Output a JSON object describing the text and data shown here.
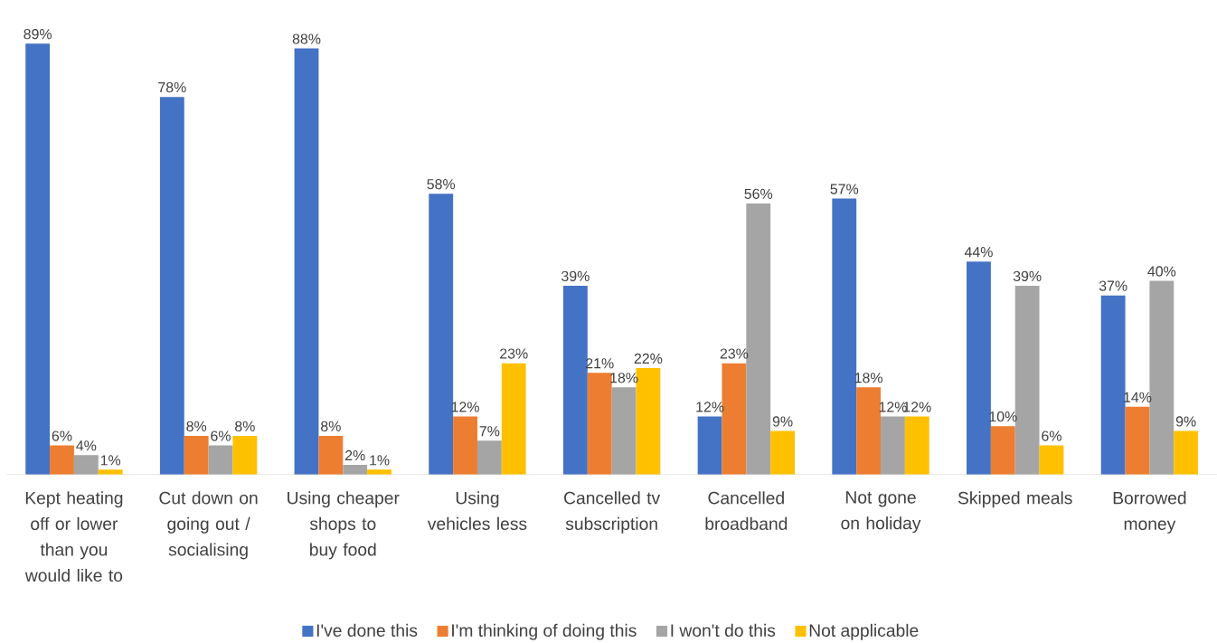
{
  "chart_data": {
    "type": "bar",
    "categories": [
      "Kept heating off or lower than you would like to",
      "Cut down on going out / socialising",
      "Using cheaper shops to buy food",
      "Using vehicles less",
      "Cancelled tv subscription",
      "Cancelled broadband",
      "Not gone on holiday",
      "Skipped meals",
      "Borrowed money"
    ],
    "series": [
      {
        "name": "I've done this",
        "color": "#4472c4",
        "values": [
          89,
          78,
          88,
          58,
          39,
          12,
          57,
          44,
          37
        ],
        "value_labels": [
          "89%",
          "78%",
          "88%",
          "58%",
          "39%",
          "12%",
          "57%",
          "44%",
          "37%"
        ]
      },
      {
        "name": "I'm thinking of doing this",
        "color": "#ed7d31",
        "values": [
          6,
          8,
          8,
          12,
          21,
          23,
          18,
          10,
          14
        ],
        "value_labels": [
          "6%",
          "8%",
          "8%",
          "12%",
          "21%",
          "23%",
          "18%",
          "10%",
          "14%"
        ]
      },
      {
        "name": "I won't do this",
        "color": "#a5a5a5",
        "values": [
          4,
          6,
          2,
          7,
          18,
          56,
          12,
          39,
          40
        ],
        "value_labels": [
          "4%",
          "6%",
          "2%",
          "7%",
          "18%",
          "56%",
          "12%",
          "39%",
          "40%"
        ]
      },
      {
        "name": "Not applicable",
        "color": "#ffc000",
        "values": [
          1,
          8,
          1,
          23,
          22,
          9,
          12,
          6,
          9
        ],
        "value_labels": [
          "1%",
          "8%",
          "1%",
          "23%",
          "22%",
          "9%",
          "12%",
          "6%",
          "9%"
        ]
      }
    ],
    "legend": "bottom"
  }
}
